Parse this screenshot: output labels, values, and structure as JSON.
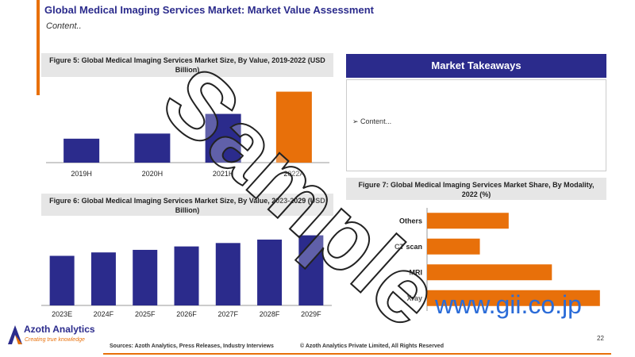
{
  "slide": {
    "title": "Global Medical Imaging Services Market: Market Value Assessment",
    "subtitle": "Content..",
    "page_number": "22"
  },
  "takeaways": {
    "header": "Market Takeaways",
    "items": [
      "➢ Content..."
    ]
  },
  "figures": {
    "fig5_title": "Figure 5: Global Medical Imaging Services Market Size, By Value, 2019-2022 (USD Billion)",
    "fig6_title": "Figure 6: Global Medical Imaging Services Market Size, By Value, 2023-2029 (USD Billion)",
    "fig7_title": "Figure 7: Global Medical Imaging Services Market Share, By Modality, 2022 (%)"
  },
  "footer": {
    "logo_name": "Azoth Analytics",
    "logo_tagline": "Creating true knowledge",
    "sources": "Sources: Azoth Analytics, Press Releases, Industry Interviews",
    "copyright": "© Azoth Analytics Private Limited, All Rights Reserved"
  },
  "watermark": {
    "text": "Sample",
    "url": "www.gii.co.jp"
  },
  "colors": {
    "primary": "#2b2b8c",
    "accent": "#e8700a",
    "link": "#2b6cd8"
  },
  "chart_data": [
    {
      "id": "fig5",
      "type": "bar",
      "categories": [
        "2019H",
        "2020H",
        "2021H",
        "2022A"
      ],
      "values": [
        28,
        34,
        57,
        83
      ],
      "colors": [
        "#2b2b8c",
        "#2b2b8c",
        "#2b2b8c",
        "#e8700a"
      ],
      "ylim": [
        0,
        90
      ]
    },
    {
      "id": "fig6",
      "type": "bar",
      "categories": [
        "2023E",
        "2024F",
        "2025F",
        "2026F",
        "2027F",
        "2028F",
        "2029F"
      ],
      "values": [
        58,
        62,
        65,
        69,
        73,
        77,
        82
      ],
      "colors": [
        "#2b2b8c",
        "#2b2b8c",
        "#2b2b8c",
        "#2b2b8c",
        "#2b2b8c",
        "#2b2b8c",
        "#2b2b8c"
      ],
      "ylim": [
        0,
        90
      ]
    },
    {
      "id": "fig7",
      "type": "bar",
      "orientation": "horizontal",
      "categories": [
        "Others",
        "CT scan",
        "MRI",
        "Xray"
      ],
      "values": [
        17,
        11,
        26,
        36
      ],
      "colors": [
        "#e8700a",
        "#e8700a",
        "#e8700a",
        "#e8700a"
      ],
      "xlim": [
        0,
        40
      ]
    }
  ]
}
